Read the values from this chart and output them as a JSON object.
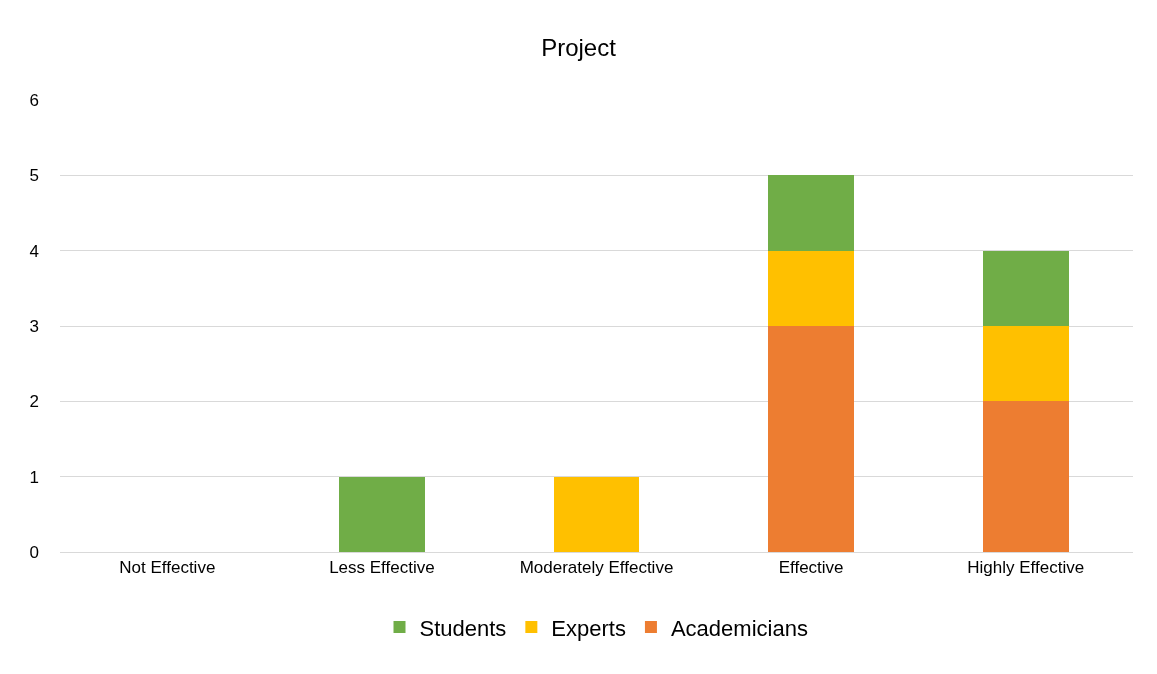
{
  "chart_data": {
    "type": "bar",
    "title": "Project",
    "stacked": true,
    "categories": [
      "Not Effective",
      "Less Effective",
      "Moderately Effective",
      "Effective",
      "Highly Effective"
    ],
    "series": [
      {
        "name": "Academicians",
        "color": "#ed7d31",
        "values": [
          0,
          0,
          0,
          3,
          2
        ]
      },
      {
        "name": "Experts",
        "color": "#ffc000",
        "values": [
          0,
          0,
          1,
          1,
          1
        ]
      },
      {
        "name": "Students",
        "color": "#70ad47",
        "values": [
          0,
          1,
          0,
          1,
          1
        ]
      }
    ],
    "ylim": [
      0,
      6
    ],
    "yticks": [
      0,
      1,
      2,
      3,
      4,
      5,
      6
    ],
    "grid": "y",
    "legend": "bottom"
  }
}
